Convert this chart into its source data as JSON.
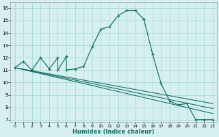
{
  "xlabel": "Humidex (Indice chaleur)",
  "bg_color": "#d6f0ef",
  "grid_color": "#aaddda",
  "line_color": "#1a7068",
  "xlim": [
    -0.5,
    23.5
  ],
  "ylim": [
    6.8,
    16.5
  ],
  "xticks": [
    0,
    1,
    2,
    3,
    4,
    5,
    6,
    7,
    8,
    9,
    10,
    11,
    12,
    13,
    14,
    15,
    16,
    17,
    18,
    19,
    20,
    21,
    22,
    23
  ],
  "yticks": [
    7,
    8,
    9,
    10,
    11,
    12,
    13,
    14,
    15,
    16
  ],
  "curve1_x": [
    0,
    1,
    2,
    3,
    4,
    5,
    5,
    6,
    6,
    7,
    8,
    9,
    10,
    11,
    12,
    13,
    14,
    15,
    16,
    17,
    18,
    19,
    20,
    21,
    22,
    23
  ],
  "curve1_y": [
    11.2,
    11.7,
    11.0,
    12.0,
    11.1,
    12.0,
    11.0,
    12.1,
    11.0,
    11.1,
    11.3,
    12.9,
    14.3,
    14.5,
    15.4,
    15.8,
    15.8,
    15.1,
    12.3,
    9.9,
    8.5,
    8.2,
    8.3,
    7.0,
    7.0,
    7.0
  ],
  "line2_x": [
    0,
    23
  ],
  "line2_y": [
    11.2,
    7.5
  ],
  "line3_x": [
    0,
    23
  ],
  "line3_y": [
    11.2,
    7.9
  ],
  "line4_x": [
    0,
    23
  ],
  "line4_y": [
    11.2,
    8.3
  ]
}
